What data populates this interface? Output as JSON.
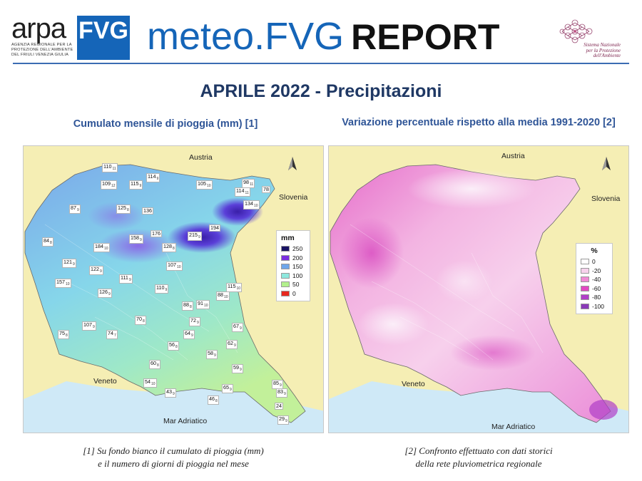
{
  "header": {
    "arpa_word": "ARPA",
    "arpa_fvg": "FVG",
    "arpa_subtitle": [
      "AGENZIA REGIONALE PER LA",
      "PROTEZIONE DELL'AMBIENTE",
      "DEL FRIULI VENEZIA GIULIA"
    ],
    "brand_meteo": "meteo.FVG",
    "brand_report": "REPORT",
    "snpa_text": [
      "Sistema Nazionale",
      "per la Protezione",
      "dell'Ambiente"
    ]
  },
  "title": "APRILE 2022 - Precipitazioni",
  "left_map": {
    "subtitle": "Cumulato mensile di pioggia (mm) [1]",
    "labels": {
      "austria": "Austria",
      "slovenia": "Slovenia",
      "veneto": "Veneto",
      "sea": "Mar Adriatico"
    },
    "legend": {
      "title": "mm",
      "items": [
        {
          "label": "250",
          "color": "#1a1464"
        },
        {
          "label": "200",
          "color": "#7b2fe0"
        },
        {
          "label": "150",
          "color": "#6fa6ea"
        },
        {
          "label": "100",
          "color": "#8ee8de"
        },
        {
          "label": "50",
          "color": "#b2f08c"
        },
        {
          "label": "0",
          "color": "#e8281e"
        }
      ]
    },
    "stations": [
      {
        "value": "110",
        "days": "11"
      },
      {
        "value": "114",
        "days": "9"
      },
      {
        "value": "109",
        "days": "12"
      },
      {
        "value": "115",
        "days": "9"
      },
      {
        "value": "105",
        "days": "10"
      },
      {
        "value": "98",
        "days": "11"
      },
      {
        "value": "78",
        "days": ""
      },
      {
        "value": "114",
        "days": "11"
      },
      {
        "value": "87",
        "days": "9"
      },
      {
        "value": "125",
        "days": "8"
      },
      {
        "value": "136",
        "days": ""
      },
      {
        "value": "134",
        "days": "10"
      },
      {
        "value": "194",
        "days": ""
      },
      {
        "value": "84",
        "days": "8"
      },
      {
        "value": "176",
        "days": ""
      },
      {
        "value": "215",
        "days": "9"
      },
      {
        "value": "184",
        "days": "10"
      },
      {
        "value": "158",
        "days": "9"
      },
      {
        "value": "128",
        "days": "8"
      },
      {
        "value": "121",
        "days": "9"
      },
      {
        "value": "122",
        "days": "9"
      },
      {
        "value": "107",
        "days": "10"
      },
      {
        "value": "111",
        "days": "9"
      },
      {
        "value": "157",
        "days": "10"
      },
      {
        "value": "126",
        "days": "9"
      },
      {
        "value": "110",
        "days": "9"
      },
      {
        "value": "115",
        "days": "10"
      },
      {
        "value": "88",
        "days": "10"
      },
      {
        "value": "88",
        "days": "8"
      },
      {
        "value": "91",
        "days": "10"
      },
      {
        "value": "107",
        "days": "9"
      },
      {
        "value": "70",
        "days": "8"
      },
      {
        "value": "72",
        "days": "9"
      },
      {
        "value": "67",
        "days": "9"
      },
      {
        "value": "75",
        "days": "8"
      },
      {
        "value": "74",
        "days": "7"
      },
      {
        "value": "64",
        "days": "9"
      },
      {
        "value": "56",
        "days": "8"
      },
      {
        "value": "62",
        "days": "9"
      },
      {
        "value": "58",
        "days": "9"
      },
      {
        "value": "60",
        "days": "8"
      },
      {
        "value": "59",
        "days": "9"
      },
      {
        "value": "54",
        "days": "10"
      },
      {
        "value": "43",
        "days": "9"
      },
      {
        "value": "65",
        "days": "9"
      },
      {
        "value": "46",
        "days": "8"
      },
      {
        "value": "85",
        "days": "9"
      },
      {
        "value": "83",
        "days": "9"
      },
      {
        "value": "24",
        "days": ""
      },
      {
        "value": "29",
        "days": "9"
      }
    ]
  },
  "right_map": {
    "subtitle": "Variazione percentuale rispetto alla media 1991-2020 [2]",
    "labels": {
      "austria": "Austria",
      "slovenia": "Slovenia",
      "veneto": "Veneto",
      "sea": "Mar Adriatico"
    },
    "legend": {
      "title": "%",
      "items": [
        {
          "label": "0",
          "color": "#ffffff"
        },
        {
          "label": "-20",
          "color": "#f7d2ec"
        },
        {
          "label": "-40",
          "color": "#f08ad4"
        },
        {
          "label": "-60",
          "color": "#e248c2"
        },
        {
          "label": "-80",
          "color": "#b13fc8"
        },
        {
          "label": "-100",
          "color": "#8a3ab8"
        }
      ]
    }
  },
  "captions": {
    "left": [
      "[1] Su fondo bianco il cumulato di pioggia (mm)",
      "e il numero di giorni di pioggia nel mese"
    ],
    "right": [
      "[2] Confronto effettuato con dati storici",
      "della rete pluviometrica regionale"
    ]
  },
  "colors": {
    "brand_blue": "#1565b8",
    "title_navy": "#1f3864",
    "subtitle_blue": "#2f5597",
    "sea": "#cfe9f7",
    "land_outside": "#f5eeb4"
  }
}
